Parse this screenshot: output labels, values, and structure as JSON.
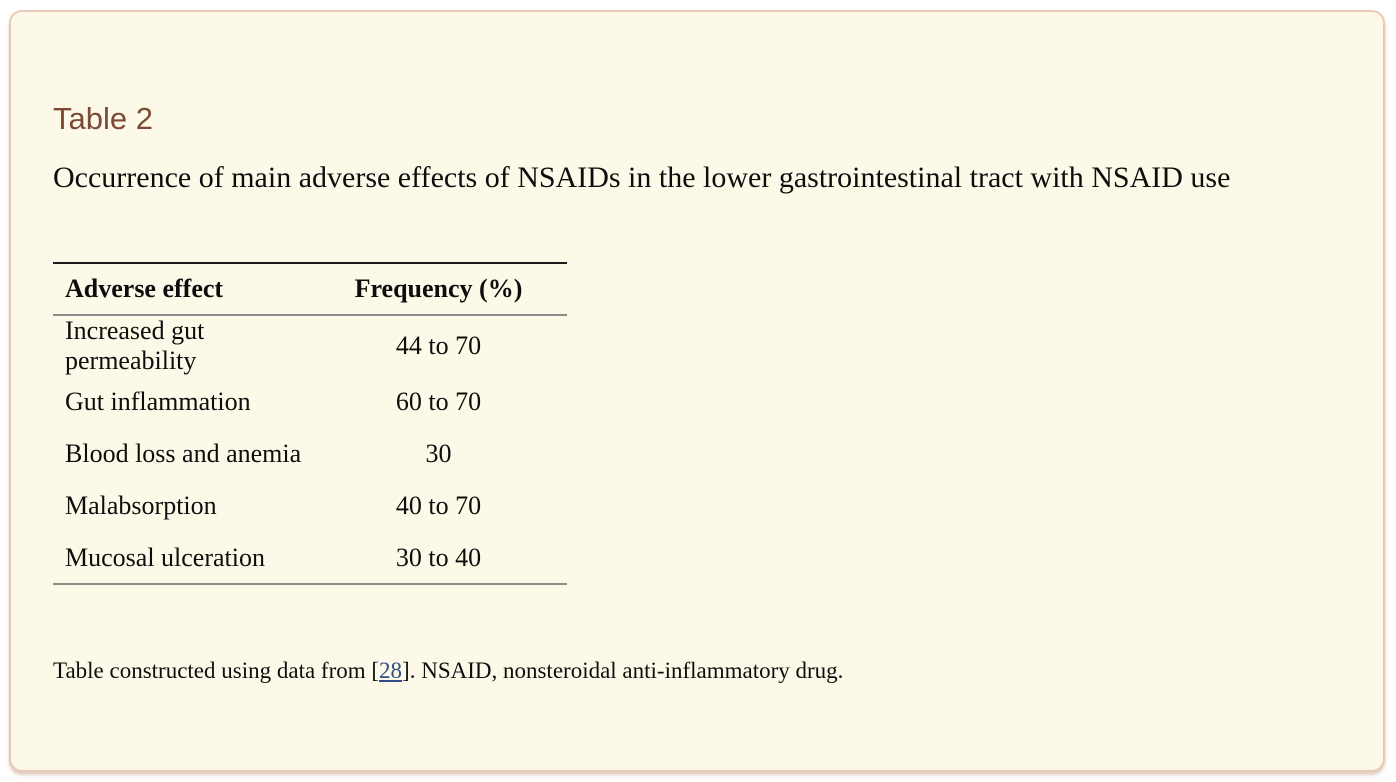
{
  "table_label": "Table 2",
  "caption": "Occurrence of main adverse effects of NSAIDs in the lower gastrointestinal tract with NSAID use",
  "table": {
    "columns": [
      "Adverse effect",
      "Frequency (%)"
    ],
    "rows": [
      [
        "Increased gut permeability",
        "44 to 70"
      ],
      [
        "Gut inflammation",
        "60 to 70"
      ],
      [
        "Blood loss and anemia",
        "30"
      ],
      [
        "Malabsorption",
        "40 to 70"
      ],
      [
        "Mucosal ulceration",
        "30 to 40"
      ]
    ]
  },
  "footnote": {
    "prefix": "Table constructed using data from [",
    "citation": "28",
    "suffix": "]. NSAID, nonsteroidal anti-inflammatory drug."
  },
  "colors": {
    "card_background": "#fdf9e8",
    "card_border": "#e9c9b7",
    "label_brown": "#7b4b36",
    "link_blue": "#304d85",
    "rule_dark": "#1b1b1b",
    "rule_gray": "#8c8c8c"
  }
}
